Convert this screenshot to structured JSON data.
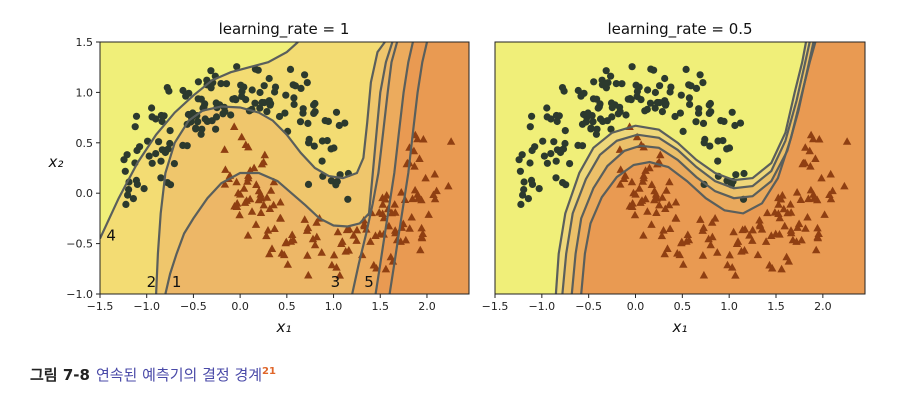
{
  "chart_data": [
    {
      "type": "scatter",
      "title": "learning_rate = 1",
      "xlabel": "x₁",
      "ylabel": "x₂",
      "xlim": [
        -1.5,
        2.45
      ],
      "ylim": [
        -1.0,
        1.5
      ],
      "xticks": [
        "−1.5",
        "−1.0",
        "−0.5",
        "0.0",
        "0.5",
        "1.0",
        "1.5",
        "2.0"
      ],
      "xtick_values": [
        -1.5,
        -1.0,
        -0.5,
        0.0,
        0.5,
        1.0,
        1.5,
        2.0
      ],
      "yticks": [
        "−1.0",
        "−0.5",
        "0.0",
        "0.5",
        "1.0",
        "1.5"
      ],
      "ytick_values": [
        -1.0,
        -0.5,
        0.0,
        0.5,
        1.0,
        1.5
      ],
      "grid": false,
      "annotations": [
        {
          "text": "4",
          "x": -1.38,
          "y": -0.47
        },
        {
          "text": "2",
          "x": -0.95,
          "y": -0.93
        },
        {
          "text": "1",
          "x": -0.68,
          "y": -0.93
        },
        {
          "text": "3",
          "x": 1.02,
          "y": -0.93
        },
        {
          "text": "5",
          "x": 1.38,
          "y": -0.93
        }
      ],
      "boundaries": [
        {
          "label": "4",
          "points": [
            [
              -1.5,
              -0.45
            ],
            [
              -1.3,
              -0.05
            ],
            [
              -1.1,
              0.3
            ],
            [
              -0.9,
              0.58
            ],
            [
              -0.7,
              0.8
            ],
            [
              -0.5,
              0.97
            ],
            [
              -0.3,
              1.12
            ],
            [
              -0.1,
              1.2
            ],
            [
              0.1,
              1.25
            ],
            [
              0.3,
              1.3
            ],
            [
              0.5,
              1.4
            ],
            [
              0.62,
              1.5
            ]
          ]
        },
        {
          "label": "2",
          "points": [
            [
              -0.9,
              -1.0
            ],
            [
              -0.88,
              -0.6
            ],
            [
              -0.85,
              -0.2
            ],
            [
              -0.8,
              0.2
            ],
            [
              -0.7,
              0.5
            ],
            [
              -0.55,
              0.72
            ],
            [
              -0.4,
              0.82
            ],
            [
              -0.2,
              0.86
            ],
            [
              0.0,
              0.85
            ],
            [
              0.2,
              0.8
            ],
            [
              0.35,
              0.72
            ],
            [
              0.5,
              0.58
            ],
            [
              0.65,
              0.4
            ],
            [
              0.8,
              0.25
            ],
            [
              0.95,
              0.17
            ],
            [
              1.1,
              0.15
            ],
            [
              1.25,
              0.2
            ],
            [
              1.32,
              0.35
            ],
            [
              1.36,
              0.7
            ],
            [
              1.4,
              1.1
            ],
            [
              1.47,
              1.4
            ],
            [
              1.55,
              1.5
            ]
          ]
        },
        {
          "label": "1",
          "points": [
            [
              -0.8,
              -1.0
            ],
            [
              -0.75,
              -0.8
            ],
            [
              -0.68,
              -0.6
            ],
            [
              -0.6,
              -0.4
            ],
            [
              -0.5,
              -0.25
            ],
            [
              -0.35,
              -0.05
            ],
            [
              -0.2,
              0.1
            ],
            [
              0.0,
              0.2
            ],
            [
              0.2,
              0.2
            ],
            [
              0.4,
              0.12
            ],
            [
              0.55,
              0.0
            ],
            [
              0.7,
              -0.12
            ],
            [
              0.85,
              -0.25
            ],
            [
              1.0,
              -0.32
            ],
            [
              1.15,
              -0.33
            ],
            [
              1.28,
              -0.3
            ],
            [
              1.38,
              -0.2
            ],
            [
              1.42,
              0.2
            ],
            [
              1.46,
              0.6
            ],
            [
              1.5,
              1.0
            ],
            [
              1.56,
              1.3
            ],
            [
              1.63,
              1.5
            ]
          ]
        },
        {
          "label": "3",
          "points": [
            [
              1.2,
              -1.0
            ],
            [
              1.27,
              -0.7
            ],
            [
              1.35,
              -0.4
            ],
            [
              1.42,
              -0.1
            ],
            [
              1.48,
              0.2
            ],
            [
              1.53,
              0.6
            ],
            [
              1.58,
              1.0
            ],
            [
              1.62,
              1.3
            ],
            [
              1.68,
              1.5
            ]
          ]
        },
        {
          "label": "5",
          "points": [
            [
              1.45,
              -1.0
            ],
            [
              1.5,
              -0.7
            ],
            [
              1.55,
              -0.4
            ],
            [
              1.6,
              -0.1
            ],
            [
              1.65,
              0.2
            ],
            [
              1.7,
              0.6
            ],
            [
              1.75,
              1.0
            ],
            [
              1.8,
              1.3
            ],
            [
              1.85,
              1.5
            ]
          ]
        },
        {
          "label": "",
          "points": [
            [
              1.6,
              -1.0
            ],
            [
              1.65,
              -0.7
            ],
            [
              1.7,
              -0.4
            ],
            [
              1.75,
              -0.1
            ],
            [
              1.8,
              0.2
            ],
            [
              1.85,
              0.6
            ],
            [
              1.9,
              1.0
            ],
            [
              1.95,
              1.3
            ],
            [
              2.0,
              1.5
            ]
          ]
        }
      ]
    },
    {
      "type": "scatter",
      "title": "learning_rate = 0.5",
      "xlabel": "x₁",
      "ylabel": "",
      "xlim": [
        -1.5,
        2.45
      ],
      "ylim": [
        -1.0,
        1.5
      ],
      "xticks": [
        "−1.5",
        "−1.0",
        "−0.5",
        "0.0",
        "0.5",
        "1.0",
        "1.5",
        "2.0"
      ],
      "xtick_values": [
        -1.5,
        -1.0,
        -0.5,
        0.0,
        0.5,
        1.0,
        1.5,
        2.0
      ],
      "yticks": [],
      "ytick_values": [],
      "grid": false,
      "annotations": [],
      "boundaries": [
        {
          "label": "",
          "points": [
            [
              -0.85,
              -1.0
            ],
            [
              -0.82,
              -0.6
            ],
            [
              -0.75,
              -0.2
            ],
            [
              -0.6,
              0.2
            ],
            [
              -0.45,
              0.45
            ],
            [
              -0.25,
              0.6
            ],
            [
              0.0,
              0.67
            ],
            [
              0.25,
              0.63
            ],
            [
              0.45,
              0.5
            ],
            [
              0.65,
              0.33
            ],
            [
              0.85,
              0.2
            ],
            [
              1.05,
              0.13
            ],
            [
              1.25,
              0.15
            ],
            [
              1.45,
              0.3
            ],
            [
              1.6,
              0.6
            ],
            [
              1.7,
              1.0
            ],
            [
              1.78,
              1.3
            ],
            [
              1.82,
              1.5
            ]
          ]
        },
        {
          "label": "",
          "points": [
            [
              -0.78,
              -1.0
            ],
            [
              -0.74,
              -0.6
            ],
            [
              -0.67,
              -0.2
            ],
            [
              -0.53,
              0.14
            ],
            [
              -0.38,
              0.38
            ],
            [
              -0.2,
              0.52
            ],
            [
              0.02,
              0.58
            ],
            [
              0.25,
              0.55
            ],
            [
              0.45,
              0.43
            ],
            [
              0.65,
              0.26
            ],
            [
              0.85,
              0.12
            ],
            [
              1.05,
              0.05
            ],
            [
              1.25,
              0.07
            ],
            [
              1.45,
              0.22
            ],
            [
              1.6,
              0.52
            ],
            [
              1.72,
              0.92
            ],
            [
              1.8,
              1.25
            ],
            [
              1.86,
              1.5
            ]
          ]
        },
        {
          "label": "",
          "points": [
            [
              -0.68,
              -1.0
            ],
            [
              -0.64,
              -0.6
            ],
            [
              -0.58,
              -0.25
            ],
            [
              -0.45,
              0.05
            ],
            [
              -0.3,
              0.27
            ],
            [
              -0.12,
              0.42
            ],
            [
              0.05,
              0.47
            ],
            [
              0.25,
              0.45
            ],
            [
              0.45,
              0.33
            ],
            [
              0.65,
              0.16
            ],
            [
              0.85,
              0.02
            ],
            [
              1.05,
              -0.05
            ],
            [
              1.25,
              -0.03
            ],
            [
              1.45,
              0.12
            ],
            [
              1.62,
              0.42
            ],
            [
              1.74,
              0.82
            ],
            [
              1.83,
              1.2
            ],
            [
              1.9,
              1.5
            ]
          ]
        },
        {
          "label": "",
          "points": [
            [
              -0.58,
              -1.0
            ],
            [
              -0.54,
              -0.6
            ],
            [
              -0.48,
              -0.3
            ],
            [
              -0.36,
              -0.04
            ],
            [
              -0.2,
              0.16
            ],
            [
              -0.02,
              0.28
            ],
            [
              0.15,
              0.31
            ],
            [
              0.35,
              0.26
            ],
            [
              0.55,
              0.12
            ],
            [
              0.75,
              -0.05
            ],
            [
              0.95,
              -0.17
            ],
            [
              1.15,
              -0.2
            ],
            [
              1.35,
              -0.1
            ],
            [
              1.52,
              0.15
            ],
            [
              1.66,
              0.55
            ],
            [
              1.78,
              1.0
            ],
            [
              1.86,
              1.3
            ],
            [
              1.92,
              1.5
            ]
          ]
        }
      ]
    }
  ],
  "caption": {
    "figure_number": "그림 7-8",
    "text": "연속된 예측기의 결정 경계",
    "superscript": "21"
  },
  "colors": {
    "region_class0": "#f0ef79",
    "region_class1": "#e99a52",
    "region_mid": "#efc66c",
    "boundary_line": "#5a5f5c",
    "circle_marker": "#2c3a2e",
    "triangle_marker": "#8f3f12",
    "caption_text": "#4a4aa8",
    "caption_sup": "#e0662a"
  }
}
